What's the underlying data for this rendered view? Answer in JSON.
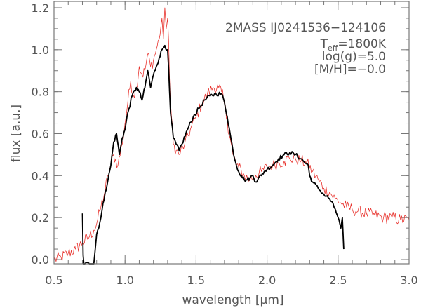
{
  "chart_data": {
    "type": "line",
    "title": "",
    "xlabel": "wavelength [μm]",
    "ylabel": "flux [a.u.]",
    "xlim": [
      0.5,
      3.0
    ],
    "ylim": [
      -0.02,
      1.23
    ],
    "x_ticks": [
      0.5,
      1.0,
      1.5,
      2.0,
      2.5,
      3.0
    ],
    "x_tick_labels": [
      "0.5",
      "1.0",
      "1.5",
      "2.0",
      "2.5",
      "3.0"
    ],
    "y_ticks": [
      0.0,
      0.2,
      0.4,
      0.6,
      0.8,
      1.0,
      1.2
    ],
    "y_tick_labels": [
      "0.0",
      "0.2",
      "0.4",
      "0.6",
      "0.8",
      "1.0",
      "1.2"
    ],
    "grid": false,
    "annotations": {
      "object": "2MASS IJ0241536−124106",
      "teff_prefix": "T",
      "teff_sub": "eff",
      "teff_suffix": "=1800K",
      "logg": "log(g)=5.0",
      "metallicity": "[M/H]=−0.0"
    },
    "series": [
      {
        "color": "#000000",
        "width": 1.8,
        "noise": 0.01,
        "points": [
          [
            0.7,
            0.22
          ],
          [
            0.705,
            0.02
          ],
          [
            0.71,
            -0.02
          ],
          [
            0.78,
            -0.02
          ],
          [
            0.8,
            0.12
          ],
          [
            0.83,
            0.2
          ],
          [
            0.86,
            0.32
          ],
          [
            0.88,
            0.38
          ],
          [
            0.9,
            0.45
          ],
          [
            0.92,
            0.56
          ],
          [
            0.94,
            0.6
          ],
          [
            0.96,
            0.5
          ],
          [
            0.98,
            0.58
          ],
          [
            1.0,
            0.62
          ],
          [
            1.02,
            0.7
          ],
          [
            1.05,
            0.78
          ],
          [
            1.08,
            0.82
          ],
          [
            1.1,
            0.8
          ],
          [
            1.12,
            0.76
          ],
          [
            1.14,
            0.82
          ],
          [
            1.16,
            0.9
          ],
          [
            1.18,
            0.82
          ],
          [
            1.2,
            0.88
          ],
          [
            1.22,
            0.92
          ],
          [
            1.24,
            0.96
          ],
          [
            1.26,
            1.0
          ],
          [
            1.28,
            1.02
          ],
          [
            1.3,
            1.0
          ],
          [
            1.32,
            0.7
          ],
          [
            1.34,
            0.58
          ],
          [
            1.36,
            0.55
          ],
          [
            1.38,
            0.52
          ],
          [
            1.4,
            0.55
          ],
          [
            1.44,
            0.62
          ],
          [
            1.48,
            0.68
          ],
          [
            1.52,
            0.72
          ],
          [
            1.56,
            0.76
          ],
          [
            1.6,
            0.78
          ],
          [
            1.64,
            0.79
          ],
          [
            1.68,
            0.79
          ],
          [
            1.7,
            0.75
          ],
          [
            1.72,
            0.68
          ],
          [
            1.74,
            0.6
          ],
          [
            1.76,
            0.52
          ],
          [
            1.78,
            0.46
          ],
          [
            1.8,
            0.42
          ],
          [
            1.82,
            0.4
          ],
          [
            1.84,
            0.38
          ],
          [
            1.86,
            0.38
          ],
          [
            1.88,
            0.39
          ],
          [
            1.9,
            0.4
          ],
          [
            1.92,
            0.37
          ],
          [
            1.94,
            0.39
          ],
          [
            1.96,
            0.4
          ],
          [
            1.98,
            0.42
          ],
          [
            2.0,
            0.43
          ],
          [
            2.04,
            0.45
          ],
          [
            2.08,
            0.48
          ],
          [
            2.12,
            0.5
          ],
          [
            2.16,
            0.51
          ],
          [
            2.2,
            0.5
          ],
          [
            2.24,
            0.48
          ],
          [
            2.27,
            0.46
          ],
          [
            2.29,
            0.45
          ],
          [
            2.3,
            0.4
          ],
          [
            2.32,
            0.37
          ],
          [
            2.36,
            0.34
          ],
          [
            2.4,
            0.31
          ],
          [
            2.44,
            0.29
          ],
          [
            2.48,
            0.24
          ],
          [
            2.5,
            0.2
          ],
          [
            2.52,
            0.15
          ],
          [
            2.53,
            0.2
          ],
          [
            2.54,
            0.05
          ]
        ]
      },
      {
        "color": "#e8332e",
        "width": 0.8,
        "noise": 0.03,
        "points": [
          [
            0.5,
            0.0
          ],
          [
            0.55,
            0.01
          ],
          [
            0.6,
            0.03
          ],
          [
            0.65,
            0.05
          ],
          [
            0.7,
            0.08
          ],
          [
            0.75,
            0.11
          ],
          [
            0.78,
            0.14
          ],
          [
            0.8,
            0.17
          ],
          [
            0.83,
            0.25
          ],
          [
            0.86,
            0.33
          ],
          [
            0.88,
            0.4
          ],
          [
            0.9,
            0.45
          ],
          [
            0.92,
            0.5
          ],
          [
            0.95,
            0.45
          ],
          [
            0.98,
            0.55
          ],
          [
            1.0,
            0.65
          ],
          [
            1.02,
            0.75
          ],
          [
            1.04,
            0.85
          ],
          [
            1.06,
            0.78
          ],
          [
            1.08,
            0.82
          ],
          [
            1.1,
            0.92
          ],
          [
            1.12,
            0.88
          ],
          [
            1.14,
            0.9
          ],
          [
            1.16,
            0.98
          ],
          [
            1.18,
            0.92
          ],
          [
            1.2,
            0.95
          ],
          [
            1.22,
            1.0
          ],
          [
            1.24,
            1.05
          ],
          [
            1.26,
            1.15
          ],
          [
            1.27,
            1.05
          ],
          [
            1.28,
            1.2
          ],
          [
            1.29,
            1.1
          ],
          [
            1.3,
            1.15
          ],
          [
            1.32,
            0.75
          ],
          [
            1.34,
            0.55
          ],
          [
            1.36,
            0.52
          ],
          [
            1.38,
            0.5
          ],
          [
            1.42,
            0.55
          ],
          [
            1.46,
            0.62
          ],
          [
            1.5,
            0.68
          ],
          [
            1.54,
            0.74
          ],
          [
            1.58,
            0.79
          ],
          [
            1.62,
            0.82
          ],
          [
            1.66,
            0.82
          ],
          [
            1.68,
            0.8
          ],
          [
            1.7,
            0.74
          ],
          [
            1.72,
            0.66
          ],
          [
            1.74,
            0.58
          ],
          [
            1.76,
            0.5
          ],
          [
            1.78,
            0.46
          ],
          [
            1.8,
            0.44
          ],
          [
            1.84,
            0.4
          ],
          [
            1.88,
            0.38
          ],
          [
            1.92,
            0.4
          ],
          [
            1.96,
            0.42
          ],
          [
            2.0,
            0.44
          ],
          [
            2.04,
            0.45
          ],
          [
            2.08,
            0.46
          ],
          [
            2.12,
            0.47
          ],
          [
            2.16,
            0.48
          ],
          [
            2.2,
            0.48
          ],
          [
            2.24,
            0.47
          ],
          [
            2.28,
            0.46
          ],
          [
            2.32,
            0.42
          ],
          [
            2.36,
            0.38
          ],
          [
            2.4,
            0.34
          ],
          [
            2.44,
            0.32
          ],
          [
            2.48,
            0.29
          ],
          [
            2.52,
            0.27
          ],
          [
            2.56,
            0.25
          ],
          [
            2.6,
            0.24
          ],
          [
            2.64,
            0.23
          ],
          [
            2.7,
            0.22
          ],
          [
            2.76,
            0.21
          ],
          [
            2.82,
            0.2
          ],
          [
            2.88,
            0.2
          ],
          [
            2.94,
            0.19
          ],
          [
            3.0,
            0.19
          ]
        ]
      }
    ]
  }
}
